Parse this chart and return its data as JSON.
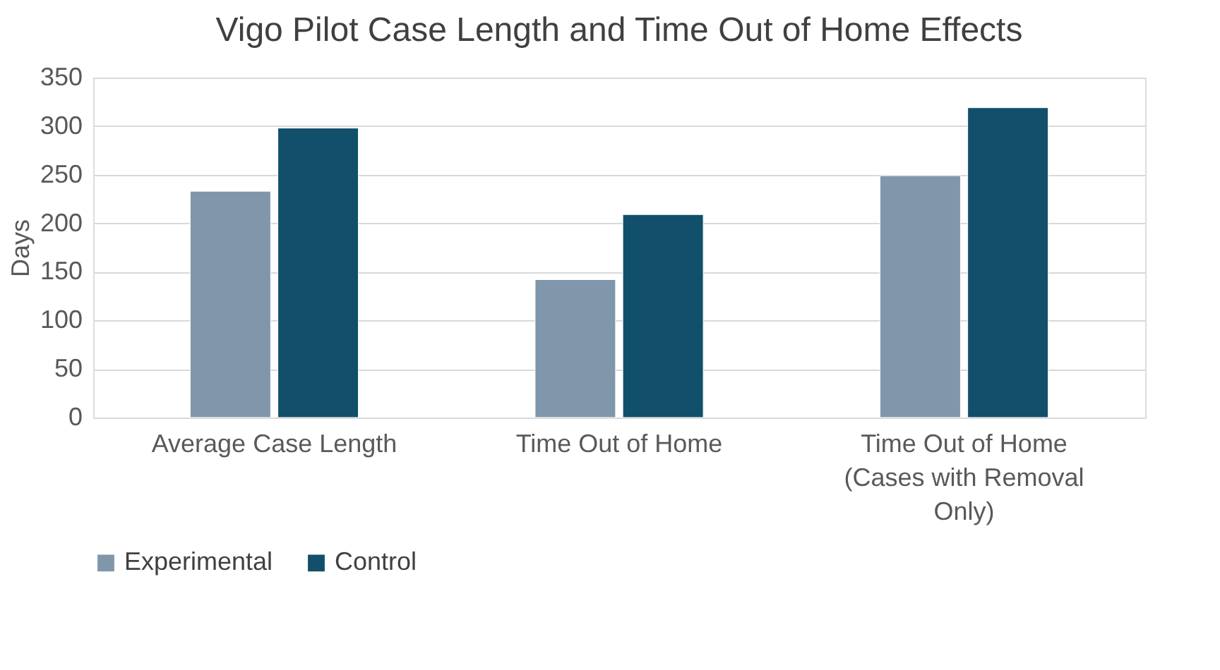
{
  "chart_data": {
    "type": "bar",
    "title": "Vigo Pilot Case Length and Time Out of Home Effects",
    "ylabel": "Days",
    "categories": [
      "Average Case Length",
      "Time Out of Home",
      "Time Out of Home (Cases with Removal Only)"
    ],
    "series": [
      {
        "name": "Experimental",
        "color": "#8096aa",
        "values": [
          233,
          142,
          249
        ]
      },
      {
        "name": "Control",
        "color": "#114f6b",
        "values": [
          298,
          209,
          319
        ]
      }
    ],
    "ylim": [
      0,
      350
    ],
    "yticks": [
      0,
      50,
      100,
      150,
      200,
      250,
      300,
      350
    ],
    "grid": "y",
    "legend": "bottom"
  }
}
